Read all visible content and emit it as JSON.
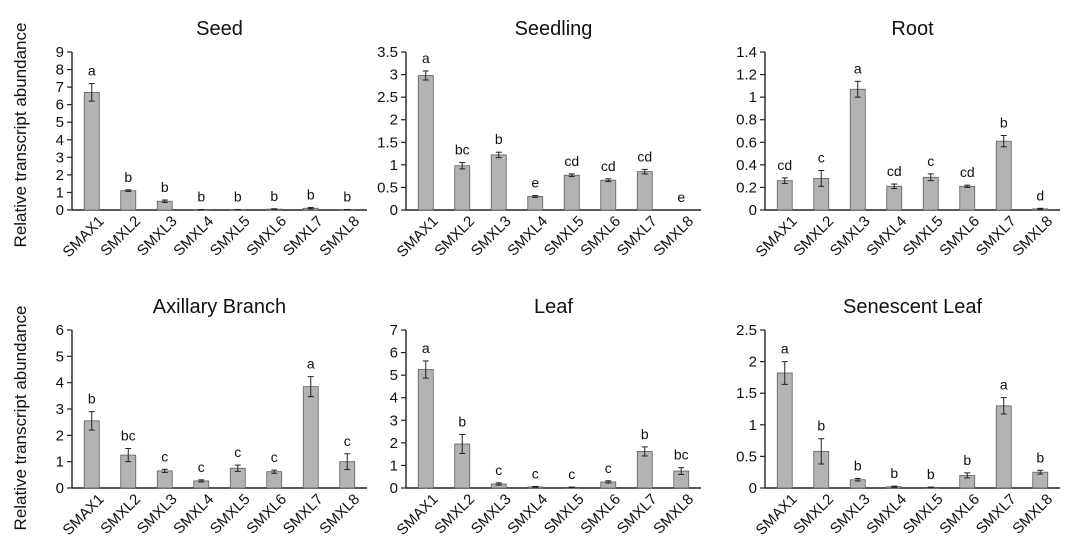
{
  "figure": {
    "ylabel": "Relative  transcript abundance"
  },
  "chart_data": [
    {
      "type": "bar",
      "title": "Seed",
      "xlabel": "",
      "ylabel": "Relative  transcript abundance",
      "categories": [
        "SMAX1",
        "SMXL2",
        "SMXL3",
        "SMXL4",
        "SMXL5",
        "SMXL6",
        "SMXL7",
        "SMXL8"
      ],
      "values": [
        6.7,
        1.1,
        0.5,
        0.02,
        0.02,
        0.05,
        0.1,
        0.02
      ],
      "errors": [
        0.5,
        0.05,
        0.07,
        0.01,
        0.01,
        0.02,
        0.04,
        0.01
      ],
      "significance": [
        "a",
        "b",
        "b",
        "b",
        "b",
        "b",
        "b",
        "b"
      ],
      "ylim": [
        0,
        9
      ],
      "yticks": [
        "0",
        "1",
        "2",
        "3",
        "4",
        "5",
        "6",
        "7",
        "8",
        "9"
      ],
      "grid": false
    },
    {
      "type": "bar",
      "title": "Seedling",
      "xlabel": "",
      "ylabel": "",
      "categories": [
        "SMAX1",
        "SMXL2",
        "SMXL3",
        "SMXL4",
        "SMXL5",
        "SMXL6",
        "SMXL7",
        "SMXL8"
      ],
      "values": [
        2.98,
        0.98,
        1.22,
        0.3,
        0.77,
        0.66,
        0.85,
        0.0
      ],
      "errors": [
        0.1,
        0.07,
        0.06,
        0.02,
        0.03,
        0.03,
        0.05,
        0.0
      ],
      "significance": [
        "a",
        "bc",
        "b",
        "e",
        "cd",
        "cd",
        "cd",
        "e"
      ],
      "ylim": [
        0,
        3.5
      ],
      "yticks": [
        "0",
        "0.5",
        "1",
        "1.5",
        "2",
        "2.5",
        "3",
        "3.5"
      ],
      "grid": false
    },
    {
      "type": "bar",
      "title": "Root",
      "xlabel": "",
      "ylabel": "",
      "categories": [
        "SMAX1",
        "SMXL2",
        "SMXL3",
        "SMXL4",
        "SMXL5",
        "SMXL6",
        "SMXL7",
        "SMXL8"
      ],
      "values": [
        0.26,
        0.28,
        1.07,
        0.21,
        0.29,
        0.21,
        0.61,
        0.01
      ],
      "errors": [
        0.025,
        0.07,
        0.07,
        0.02,
        0.03,
        0.01,
        0.05,
        0.005
      ],
      "significance": [
        "cd",
        "c",
        "a",
        "cd",
        "c",
        "cd",
        "b",
        "d"
      ],
      "ylim": [
        0,
        1.4
      ],
      "yticks": [
        "0",
        "0.2",
        "0.4",
        "0.6",
        "0.8",
        "1",
        "1.2",
        "1.4"
      ],
      "grid": false
    },
    {
      "type": "bar",
      "title": "Axillary Branch",
      "xlabel": "",
      "ylabel": "Relative  transcript abundance",
      "categories": [
        "SMAX1",
        "SMXL2",
        "SMXL3",
        "SMXL4",
        "SMXL5",
        "SMXL6",
        "SMXL7",
        "SMXL8"
      ],
      "values": [
        2.55,
        1.25,
        0.65,
        0.27,
        0.75,
        0.62,
        3.85,
        1.0
      ],
      "errors": [
        0.35,
        0.25,
        0.06,
        0.04,
        0.12,
        0.06,
        0.38,
        0.3
      ],
      "significance": [
        "b",
        "bc",
        "c",
        "c",
        "c",
        "c",
        "a",
        "c"
      ],
      "ylim": [
        0,
        6
      ],
      "yticks": [
        "0",
        "1",
        "2",
        "3",
        "4",
        "5",
        "6"
      ],
      "grid": false
    },
    {
      "type": "bar",
      "title": "Leaf",
      "xlabel": "",
      "ylabel": "",
      "categories": [
        "SMAX1",
        "SMXL2",
        "SMXL3",
        "SMXL4",
        "SMXL5",
        "SMXL6",
        "SMXL7",
        "SMXL8"
      ],
      "values": [
        5.25,
        1.95,
        0.18,
        0.05,
        0.03,
        0.27,
        1.62,
        0.75
      ],
      "errors": [
        0.38,
        0.42,
        0.05,
        0.02,
        0.01,
        0.05,
        0.2,
        0.15
      ],
      "significance": [
        "a",
        "b",
        "c",
        "c",
        "c",
        "c",
        "b",
        "bc"
      ],
      "ylim": [
        0,
        7
      ],
      "yticks": [
        "0",
        "1",
        "2",
        "3",
        "4",
        "5",
        "6",
        "7"
      ],
      "grid": false
    },
    {
      "type": "bar",
      "title": "Senescent Leaf",
      "xlabel": "",
      "ylabel": "",
      "categories": [
        "SMAX1",
        "SMXL2",
        "SMXL3",
        "SMXL4",
        "SMXL5",
        "SMXL6",
        "SMXL7",
        "SMXL8"
      ],
      "values": [
        1.82,
        0.58,
        0.13,
        0.02,
        0.01,
        0.2,
        1.3,
        0.25
      ],
      "errors": [
        0.18,
        0.2,
        0.02,
        0.01,
        0.005,
        0.04,
        0.13,
        0.03
      ],
      "significance": [
        "a",
        "b",
        "b",
        "b",
        "b",
        "b",
        "a",
        "b"
      ],
      "ylim": [
        0,
        2.5
      ],
      "yticks": [
        "0",
        "0.5",
        "1",
        "1.5",
        "2",
        "2.5"
      ],
      "grid": false
    }
  ],
  "colors": {
    "bar_fill": "#b3b3b3",
    "bar_stroke": "#5f5f5f",
    "axis": "#222222",
    "text": "#111111"
  }
}
